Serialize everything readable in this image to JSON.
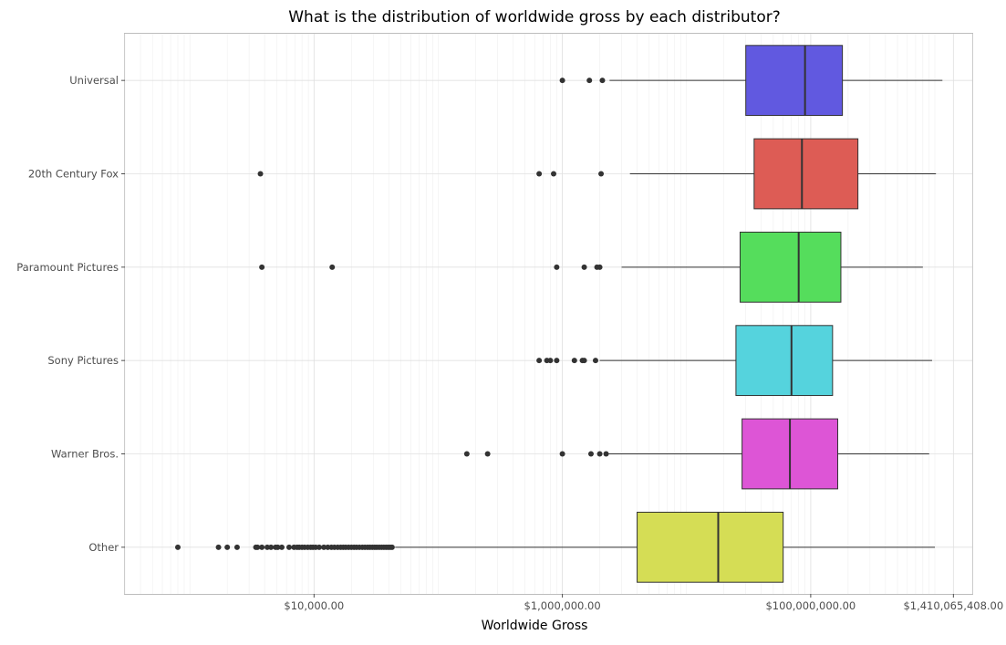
{
  "chart_data": {
    "type": "boxplot",
    "orientation": "horizontal",
    "title": "What is the distribution of worldwide gross by each distributor?",
    "xlabel": "Worldwide Gross",
    "ylabel": "",
    "x_scale": "log10",
    "xlim": [
      300,
      2000000000
    ],
    "x_ticks": [
      {
        "value": 10000,
        "label": "$10,000.00"
      },
      {
        "value": 1000000,
        "label": "$1,000,000.00"
      },
      {
        "value": 100000000,
        "label": "$100,000,000.00"
      },
      {
        "value": 1410065408,
        "label": "$1,410,065,408.00"
      }
    ],
    "grid": true,
    "categories": [
      "Universal",
      "20th Century Fox",
      "Paramount Pictures",
      "Sony Pictures",
      "Warner Bros.",
      "Other"
    ],
    "series": [
      {
        "category": "Universal",
        "color": "#6159e0",
        "whisker_low": 2400000,
        "q1": 30000000,
        "median": 90000000,
        "q3": 180000000,
        "whisker_high": 1150000000,
        "outliers": [
          1000000,
          1650000,
          2100000
        ]
      },
      {
        "category": "20th Century Fox",
        "color": "#dd5c55",
        "whisker_low": 3500000,
        "q1": 35000000,
        "median": 85000000,
        "q3": 240000000,
        "whisker_high": 1020000000,
        "outliers": [
          3700,
          650000,
          850000,
          2050000
        ]
      },
      {
        "category": "Paramount Pictures",
        "color": "#55dd5c",
        "whisker_low": 3000000,
        "q1": 27000000,
        "median": 80000000,
        "q3": 175000000,
        "whisker_high": 800000000,
        "outliers": [
          3800,
          14000,
          900000,
          1500000,
          1900000,
          2000000
        ]
      },
      {
        "category": "Sony Pictures",
        "color": "#55d3dd",
        "whisker_low": 2000000,
        "q1": 25000000,
        "median": 70000000,
        "q3": 150000000,
        "whisker_high": 950000000,
        "outliers": [
          650000,
          750000,
          800000,
          900000,
          1250000,
          1450000,
          1500000,
          1850000
        ]
      },
      {
        "category": "Warner Bros.",
        "color": "#dd55d6",
        "whisker_low": 2200000,
        "q1": 28000000,
        "median": 68000000,
        "q3": 165000000,
        "whisker_high": 900000000,
        "outliers": [
          170000,
          250000,
          1000000,
          1700000,
          2000000,
          2250000
        ]
      },
      {
        "category": "Other",
        "color": "#d5dd55",
        "whisker_low": 45000,
        "q1": 4000000,
        "median": 18000000,
        "q3": 60000000,
        "whisker_high": 1000000000,
        "outliers": [
          800,
          1700,
          2000,
          2400,
          3400,
          3500,
          3800,
          4200,
          4500,
          4900,
          5100,
          5500,
          6300,
          6900,
          7300,
          7600,
          8000,
          8400,
          8900,
          9400,
          9800,
          10300,
          11000,
          12000,
          12900,
          13800,
          14600,
          15500,
          16400,
          17200,
          18000,
          19000,
          20000,
          21000,
          22000,
          23200,
          24500,
          25700,
          27000,
          28200,
          29500,
          30800,
          32000,
          33500,
          35000,
          36500,
          38000,
          39500,
          41000,
          42500
        ]
      }
    ]
  }
}
